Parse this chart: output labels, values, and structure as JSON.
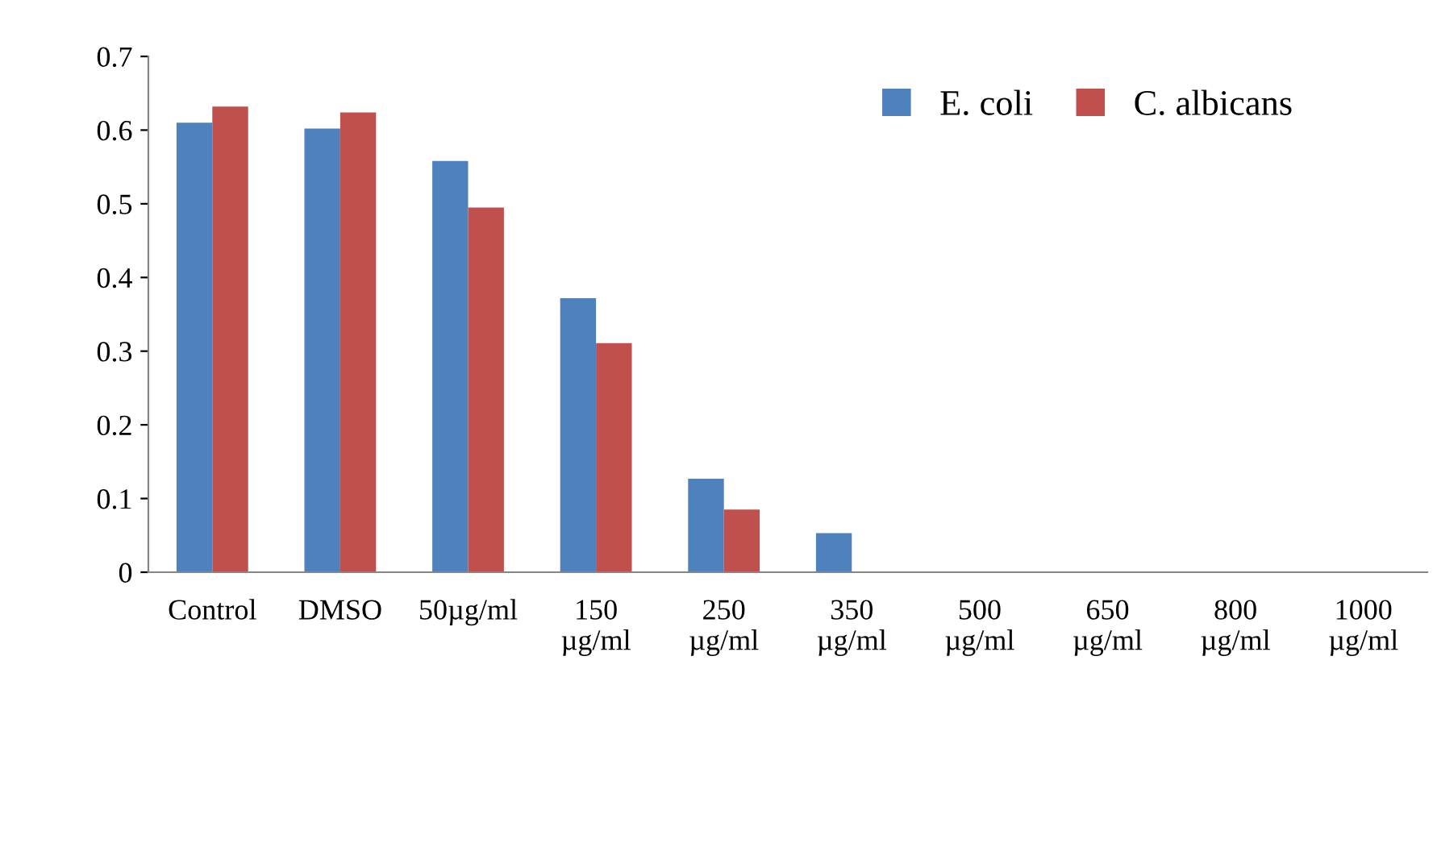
{
  "chart_data": {
    "type": "bar",
    "categories": [
      "Control",
      "DMSO",
      "50µg/ml",
      "150\nµg/ml",
      "250\nµg/ml",
      "350\nµg/ml",
      "500\nµg/ml",
      "650\nµg/ml",
      "800\nµg/ml",
      "1000\nµg/ml"
    ],
    "series": [
      {
        "name": "E. coli",
        "color": "#4f81bd",
        "values": [
          0.61,
          0.602,
          0.558,
          0.372,
          0.127,
          0.053,
          0,
          0,
          0,
          0
        ]
      },
      {
        "name": "C. albicans",
        "color": "#c0504d",
        "values": [
          0.632,
          0.624,
          0.495,
          0.311,
          0.085,
          0,
          0,
          0,
          0,
          0
        ]
      }
    ],
    "ylim": [
      0,
      0.7
    ],
    "yticks": [
      0,
      0.1,
      0.2,
      0.3,
      0.4,
      0.5,
      0.6,
      0.7
    ],
    "grid": false,
    "legend": "top right"
  }
}
